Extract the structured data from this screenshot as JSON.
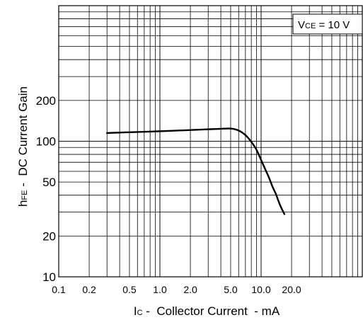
{
  "chart_data": {
    "type": "line",
    "title": "",
    "xlabel": {
      "main": "I",
      "sub": "C",
      "rest": " -  Collector Current  - mA"
    },
    "ylabel": {
      "main": "h",
      "sub": "FE",
      "rest": " -  DC Current Gain"
    },
    "annotation": {
      "main": "V",
      "sub": "CE",
      "rest": " = 10 V"
    },
    "xscale": "log",
    "yscale": "log",
    "xlim": [
      0.1,
      100
    ],
    "ylim": [
      10,
      1000
    ],
    "grid": true,
    "x_tick_labels": [
      {
        "value": 0.1,
        "label": "0.1"
      },
      {
        "value": 0.2,
        "label": "0.2"
      },
      {
        "value": 0.5,
        "label": "0.5"
      },
      {
        "value": 1.0,
        "label": "1.0"
      },
      {
        "value": 2.0,
        "label": "2.0"
      },
      {
        "value": 5.0,
        "label": "5.0"
      },
      {
        "value": 10.0,
        "label": "10.0"
      },
      {
        "value": 20.0,
        "label": "20.0"
      }
    ],
    "y_tick_labels": [
      {
        "value": 10,
        "label": "10"
      },
      {
        "value": 20,
        "label": "20"
      },
      {
        "value": 50,
        "label": "50"
      },
      {
        "value": 100,
        "label": "100"
      },
      {
        "value": 200,
        "label": "200"
      }
    ],
    "series": [
      {
        "x": [
          0.3,
          0.5,
          1.0,
          2.0,
          3.0,
          4.0,
          5.0,
          6.0,
          7.0,
          8.0,
          9.0,
          10.0,
          11.0,
          12.0,
          13.0,
          14.0,
          15.0,
          16.0,
          17.0
        ],
        "y": [
          115,
          116.5,
          118.5,
          121,
          122.5,
          123.5,
          124,
          120,
          111,
          99,
          86.5,
          72.7,
          62,
          53.6,
          46,
          40.8,
          35.5,
          31.7,
          29
        ]
      }
    ]
  }
}
